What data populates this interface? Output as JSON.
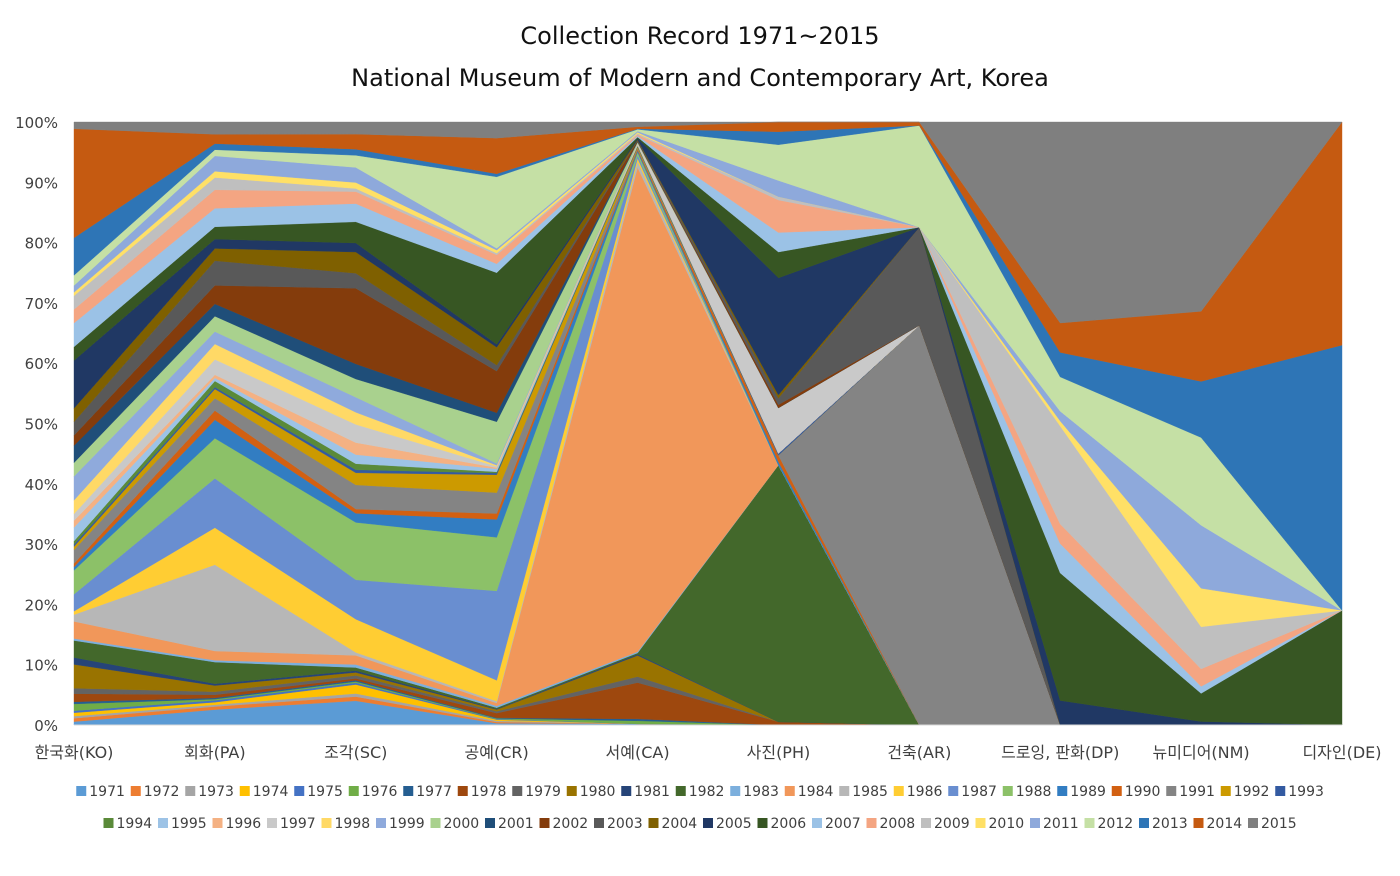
{
  "chart_data": {
    "type": "area",
    "stacked": "percent",
    "title": "Collection Record 1971~2015",
    "subtitle": "National Museum of Modern and Contemporary Art, Korea",
    "xlabel": "",
    "ylabel": "",
    "ylim": [
      0,
      100
    ],
    "y_ticks": [
      "0%",
      "10%",
      "20%",
      "30%",
      "40%",
      "50%",
      "60%",
      "70%",
      "80%",
      "90%",
      "100%"
    ],
    "grid": false,
    "legend_position": "bottom",
    "categories": [
      "한국화(KO)",
      "회화(PA)",
      "조각(SC)",
      "공예(CR)",
      "서예(CA)",
      "사진(PH)",
      "건축(AR)",
      "드로잉, 판화(DP)",
      "뉴미디어(NM)",
      "디자인(DE)"
    ],
    "series": [
      {
        "name": "1971",
        "color": "#5B9BD5",
        "values": [
          0.5,
          2.5,
          4.0,
          0.3,
          0.2,
          0.0,
          0.0,
          0.0,
          0.0,
          0.0
        ]
      },
      {
        "name": "1972",
        "color": "#ED7D31",
        "values": [
          0.5,
          0.5,
          0.7,
          0.2,
          0.0,
          0.0,
          0.0,
          0.0,
          0.0,
          0.0
        ]
      },
      {
        "name": "1973",
        "color": "#A5A5A5",
        "values": [
          0.3,
          0.3,
          0.5,
          0.2,
          0.0,
          0.0,
          0.0,
          0.0,
          0.0,
          0.0
        ]
      },
      {
        "name": "1974",
        "color": "#FFC000",
        "values": [
          0.5,
          0.4,
          1.5,
          0.2,
          0.0,
          0.0,
          0.0,
          0.0,
          0.0,
          0.0
        ]
      },
      {
        "name": "1975",
        "color": "#4472C4",
        "values": [
          0.3,
          0.3,
          0.3,
          0.1,
          0.0,
          0.0,
          0.0,
          0.0,
          0.0,
          0.0
        ]
      },
      {
        "name": "1976",
        "color": "#70AD47",
        "values": [
          1.0,
          0.2,
          0.2,
          0.1,
          0.5,
          0.0,
          0.0,
          0.0,
          0.0,
          0.0
        ]
      },
      {
        "name": "1977",
        "color": "#255E91",
        "values": [
          0.3,
          0.2,
          0.2,
          0.1,
          0.3,
          0.0,
          0.0,
          0.0,
          0.0,
          0.0
        ]
      },
      {
        "name": "1978",
        "color": "#9E480E",
        "values": [
          1.2,
          0.5,
          0.3,
          0.8,
          6.0,
          0.5,
          0.0,
          0.0,
          0.0,
          0.0
        ]
      },
      {
        "name": "1979",
        "color": "#636363",
        "values": [
          0.8,
          0.5,
          0.5,
          0.3,
          1.0,
          0.0,
          0.0,
          0.0,
          0.0,
          0.0
        ]
      },
      {
        "name": "1980",
        "color": "#997300",
        "values": [
          3.5,
          1.0,
          0.5,
          0.3,
          3.5,
          0.0,
          0.0,
          0.0,
          0.0,
          0.0
        ]
      },
      {
        "name": "1981",
        "color": "#264478",
        "values": [
          1.0,
          0.3,
          0.3,
          0.1,
          0.2,
          0.0,
          0.0,
          0.0,
          0.0,
          0.0
        ]
      },
      {
        "name": "1982",
        "color": "#43682B",
        "values": [
          2.5,
          3.5,
          0.5,
          0.2,
          0.2,
          39.5,
          0.0,
          0.0,
          0.0,
          0.0
        ]
      },
      {
        "name": "1983",
        "color": "#7CAFDD",
        "values": [
          0.3,
          0.3,
          0.5,
          0.3,
          0.2,
          0.0,
          0.0,
          0.0,
          0.0,
          0.0
        ]
      },
      {
        "name": "1984",
        "color": "#F1975A",
        "values": [
          2.5,
          1.5,
          1.5,
          0.5,
          80.0,
          0.0,
          0.0,
          0.0,
          0.0,
          0.0
        ]
      },
      {
        "name": "1985",
        "color": "#B7B7B7",
        "values": [
          1.0,
          14.0,
          0.5,
          0.3,
          1.0,
          0.0,
          0.0,
          0.0,
          0.0,
          0.0
        ]
      },
      {
        "name": "1986",
        "color": "#FFCD33",
        "values": [
          0.5,
          6.0,
          5.5,
          3.5,
          0.5,
          0.0,
          0.0,
          0.0,
          0.0,
          0.0
        ]
      },
      {
        "name": "1987",
        "color": "#698ED0",
        "values": [
          2.5,
          8.0,
          6.5,
          15.0,
          0.5,
          0.0,
          0.0,
          0.0,
          0.0,
          0.0
        ]
      },
      {
        "name": "1988",
        "color": "#8CC168",
        "values": [
          3.5,
          6.5,
          9.5,
          9.0,
          0.5,
          0.0,
          0.0,
          0.0,
          0.0,
          0.0
        ]
      },
      {
        "name": "1989",
        "color": "#327DC2",
        "values": [
          0.5,
          3.0,
          1.5,
          3.0,
          0.3,
          0.5,
          0.0,
          0.0,
          0.0,
          0.0
        ]
      },
      {
        "name": "1990",
        "color": "#D26012",
        "values": [
          0.5,
          1.5,
          0.7,
          1.0,
          0.2,
          1.0,
          0.0,
          0.0,
          0.0,
          0.0
        ]
      },
      {
        "name": "1991",
        "color": "#848484",
        "values": [
          2.0,
          2.0,
          4.0,
          3.5,
          0.2,
          0.0,
          57.0,
          0.0,
          0.0,
          0.0
        ]
      },
      {
        "name": "1992",
        "color": "#CC9A00",
        "values": [
          0.5,
          1.5,
          2.0,
          3.0,
          0.2,
          0.0,
          0.0,
          0.0,
          0.0,
          0.0
        ]
      },
      {
        "name": "1993",
        "color": "#335AA1",
        "values": [
          0.3,
          0.3,
          0.5,
          0.3,
          0.1,
          0.3,
          0.0,
          0.0,
          0.0,
          0.0
        ]
      },
      {
        "name": "1994",
        "color": "#5A8A39",
        "values": [
          0.5,
          1.0,
          1.0,
          0.2,
          0.1,
          0.0,
          0.0,
          0.0,
          0.0,
          0.0
        ]
      },
      {
        "name": "1995",
        "color": "#9DC3E6",
        "values": [
          2.0,
          0.5,
          1.5,
          0.5,
          0.1,
          0.0,
          0.0,
          0.0,
          0.0,
          0.0
        ]
      },
      {
        "name": "1996",
        "color": "#F4B183",
        "values": [
          1.0,
          0.5,
          2.0,
          0.2,
          0.1,
          0.0,
          0.0,
          0.0,
          0.0,
          0.0
        ]
      },
      {
        "name": "1997",
        "color": "#C9C9C9",
        "values": [
          1.0,
          2.5,
          3.0,
          0.2,
          0.1,
          7.0,
          0.0,
          0.0,
          0.0,
          0.0
        ]
      },
      {
        "name": "1998",
        "color": "#FFD966",
        "values": [
          2.0,
          2.5,
          2.0,
          0.2,
          0.1,
          0.0,
          0.0,
          0.0,
          0.0,
          0.0
        ]
      },
      {
        "name": "1999",
        "color": "#8FAADC",
        "values": [
          3.5,
          2.0,
          2.5,
          0.3,
          0.1,
          0.0,
          0.0,
          0.0,
          0.0,
          0.0
        ]
      },
      {
        "name": "2000",
        "color": "#A9D18E",
        "values": [
          2.0,
          2.5,
          3.0,
          7.0,
          0.1,
          0.0,
          0.0,
          0.0,
          0.0,
          0.0
        ]
      },
      {
        "name": "2001",
        "color": "#1F4E79",
        "values": [
          2.5,
          2.0,
          2.5,
          1.5,
          0.1,
          0.0,
          0.0,
          0.0,
          0.0,
          0.0
        ]
      },
      {
        "name": "2002",
        "color": "#843C0C",
        "values": [
          1.5,
          3.0,
          12.5,
          7.0,
          0.1,
          0.5,
          0.0,
          0.0,
          0.0,
          0.0
        ]
      },
      {
        "name": "2003",
        "color": "#595959",
        "values": [
          2.0,
          4.0,
          2.5,
          1.0,
          0.1,
          1.0,
          14.0,
          0.0,
          0.0,
          0.0
        ]
      },
      {
        "name": "2004",
        "color": "#7F6000",
        "values": [
          2.0,
          2.0,
          3.5,
          3.0,
          0.1,
          0.5,
          0.0,
          0.0,
          0.0,
          0.0
        ]
      },
      {
        "name": "2005",
        "color": "#203864",
        "values": [
          7.0,
          1.5,
          1.5,
          0.5,
          0.2,
          18.0,
          0.0,
          2.5,
          0.5,
          0.0
        ]
      },
      {
        "name": "2006",
        "color": "#375623",
        "values": [
          2.0,
          2.0,
          3.5,
          12.0,
          0.2,
          4.0,
          0.0,
          13.0,
          4.0,
          19.0
        ]
      },
      {
        "name": "2007",
        "color": "#9BC2E6",
        "values": [
          3.5,
          3.0,
          3.0,
          1.5,
          0.2,
          3.0,
          0.0,
          3.0,
          1.0,
          0.0
        ]
      },
      {
        "name": "2008",
        "color": "#F4A582",
        "values": [
          2.0,
          3.0,
          2.0,
          1.5,
          0.2,
          5.0,
          0.0,
          2.0,
          2.5,
          0.0
        ]
      },
      {
        "name": "2009",
        "color": "#BFBFBF",
        "values": [
          2.0,
          2.0,
          0.5,
          0.3,
          0.2,
          0.5,
          0.0,
          10.0,
          6.0,
          0.0
        ]
      },
      {
        "name": "2010",
        "color": "#FFE066",
        "values": [
          0.5,
          1.0,
          1.0,
          0.5,
          0.2,
          0.0,
          0.0,
          0.5,
          5.5,
          0.0
        ]
      },
      {
        "name": "2011",
        "color": "#8EA9DB",
        "values": [
          1.0,
          2.5,
          2.5,
          0.3,
          0.2,
          2.5,
          0.0,
          1.0,
          9.0,
          0.0
        ]
      },
      {
        "name": "2012",
        "color": "#C5E0A5",
        "values": [
          1.5,
          1.0,
          2.0,
          12.0,
          0.3,
          5.5,
          14.5,
          3.5,
          12.5,
          0.0
        ]
      },
      {
        "name": "2013",
        "color": "#2E75B6",
        "values": [
          5.5,
          1.0,
          1.0,
          0.5,
          0.1,
          2.0,
          0.0,
          2.5,
          8.0,
          44.0
        ]
      },
      {
        "name": "2014",
        "color": "#C55A11",
        "values": [
          16.0,
          1.5,
          2.5,
          6.0,
          0.3,
          1.5,
          0.5,
          3.0,
          10.0,
          37.0
        ]
      },
      {
        "name": "2015",
        "color": "#7F7F7F",
        "values": [
          1.0,
          2.0,
          2.0,
          2.7,
          0.8,
          0.0,
          0.0,
          20.5,
          27.0,
          0.0
        ]
      }
    ]
  }
}
